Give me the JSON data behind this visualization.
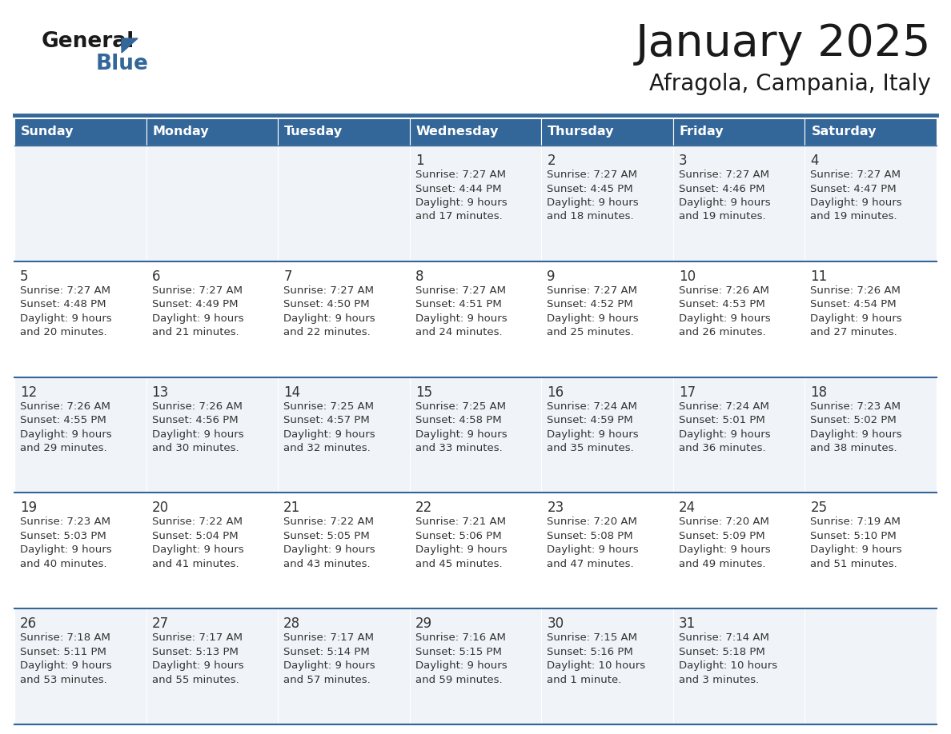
{
  "title": "January 2025",
  "subtitle": "Afragola, Campania, Italy",
  "header_bg": "#336699",
  "header_text": "#FFFFFF",
  "cell_bg_odd": "#F0F4F8",
  "cell_bg_even": "#FFFFFF",
  "separator_color": "#336699",
  "text_color": "#333333",
  "days_of_week": [
    "Sunday",
    "Monday",
    "Tuesday",
    "Wednesday",
    "Thursday",
    "Friday",
    "Saturday"
  ],
  "weeks": [
    [
      {
        "day": "",
        "lines": []
      },
      {
        "day": "",
        "lines": []
      },
      {
        "day": "",
        "lines": []
      },
      {
        "day": "1",
        "lines": [
          "Sunrise: 7:27 AM",
          "Sunset: 4:44 PM",
          "Daylight: 9 hours",
          "and 17 minutes."
        ]
      },
      {
        "day": "2",
        "lines": [
          "Sunrise: 7:27 AM",
          "Sunset: 4:45 PM",
          "Daylight: 9 hours",
          "and 18 minutes."
        ]
      },
      {
        "day": "3",
        "lines": [
          "Sunrise: 7:27 AM",
          "Sunset: 4:46 PM",
          "Daylight: 9 hours",
          "and 19 minutes."
        ]
      },
      {
        "day": "4",
        "lines": [
          "Sunrise: 7:27 AM",
          "Sunset: 4:47 PM",
          "Daylight: 9 hours",
          "and 19 minutes."
        ]
      }
    ],
    [
      {
        "day": "5",
        "lines": [
          "Sunrise: 7:27 AM",
          "Sunset: 4:48 PM",
          "Daylight: 9 hours",
          "and 20 minutes."
        ]
      },
      {
        "day": "6",
        "lines": [
          "Sunrise: 7:27 AM",
          "Sunset: 4:49 PM",
          "Daylight: 9 hours",
          "and 21 minutes."
        ]
      },
      {
        "day": "7",
        "lines": [
          "Sunrise: 7:27 AM",
          "Sunset: 4:50 PM",
          "Daylight: 9 hours",
          "and 22 minutes."
        ]
      },
      {
        "day": "8",
        "lines": [
          "Sunrise: 7:27 AM",
          "Sunset: 4:51 PM",
          "Daylight: 9 hours",
          "and 24 minutes."
        ]
      },
      {
        "day": "9",
        "lines": [
          "Sunrise: 7:27 AM",
          "Sunset: 4:52 PM",
          "Daylight: 9 hours",
          "and 25 minutes."
        ]
      },
      {
        "day": "10",
        "lines": [
          "Sunrise: 7:26 AM",
          "Sunset: 4:53 PM",
          "Daylight: 9 hours",
          "and 26 minutes."
        ]
      },
      {
        "day": "11",
        "lines": [
          "Sunrise: 7:26 AM",
          "Sunset: 4:54 PM",
          "Daylight: 9 hours",
          "and 27 minutes."
        ]
      }
    ],
    [
      {
        "day": "12",
        "lines": [
          "Sunrise: 7:26 AM",
          "Sunset: 4:55 PM",
          "Daylight: 9 hours",
          "and 29 minutes."
        ]
      },
      {
        "day": "13",
        "lines": [
          "Sunrise: 7:26 AM",
          "Sunset: 4:56 PM",
          "Daylight: 9 hours",
          "and 30 minutes."
        ]
      },
      {
        "day": "14",
        "lines": [
          "Sunrise: 7:25 AM",
          "Sunset: 4:57 PM",
          "Daylight: 9 hours",
          "and 32 minutes."
        ]
      },
      {
        "day": "15",
        "lines": [
          "Sunrise: 7:25 AM",
          "Sunset: 4:58 PM",
          "Daylight: 9 hours",
          "and 33 minutes."
        ]
      },
      {
        "day": "16",
        "lines": [
          "Sunrise: 7:24 AM",
          "Sunset: 4:59 PM",
          "Daylight: 9 hours",
          "and 35 minutes."
        ]
      },
      {
        "day": "17",
        "lines": [
          "Sunrise: 7:24 AM",
          "Sunset: 5:01 PM",
          "Daylight: 9 hours",
          "and 36 minutes."
        ]
      },
      {
        "day": "18",
        "lines": [
          "Sunrise: 7:23 AM",
          "Sunset: 5:02 PM",
          "Daylight: 9 hours",
          "and 38 minutes."
        ]
      }
    ],
    [
      {
        "day": "19",
        "lines": [
          "Sunrise: 7:23 AM",
          "Sunset: 5:03 PM",
          "Daylight: 9 hours",
          "and 40 minutes."
        ]
      },
      {
        "day": "20",
        "lines": [
          "Sunrise: 7:22 AM",
          "Sunset: 5:04 PM",
          "Daylight: 9 hours",
          "and 41 minutes."
        ]
      },
      {
        "day": "21",
        "lines": [
          "Sunrise: 7:22 AM",
          "Sunset: 5:05 PM",
          "Daylight: 9 hours",
          "and 43 minutes."
        ]
      },
      {
        "day": "22",
        "lines": [
          "Sunrise: 7:21 AM",
          "Sunset: 5:06 PM",
          "Daylight: 9 hours",
          "and 45 minutes."
        ]
      },
      {
        "day": "23",
        "lines": [
          "Sunrise: 7:20 AM",
          "Sunset: 5:08 PM",
          "Daylight: 9 hours",
          "and 47 minutes."
        ]
      },
      {
        "day": "24",
        "lines": [
          "Sunrise: 7:20 AM",
          "Sunset: 5:09 PM",
          "Daylight: 9 hours",
          "and 49 minutes."
        ]
      },
      {
        "day": "25",
        "lines": [
          "Sunrise: 7:19 AM",
          "Sunset: 5:10 PM",
          "Daylight: 9 hours",
          "and 51 minutes."
        ]
      }
    ],
    [
      {
        "day": "26",
        "lines": [
          "Sunrise: 7:18 AM",
          "Sunset: 5:11 PM",
          "Daylight: 9 hours",
          "and 53 minutes."
        ]
      },
      {
        "day": "27",
        "lines": [
          "Sunrise: 7:17 AM",
          "Sunset: 5:13 PM",
          "Daylight: 9 hours",
          "and 55 minutes."
        ]
      },
      {
        "day": "28",
        "lines": [
          "Sunrise: 7:17 AM",
          "Sunset: 5:14 PM",
          "Daylight: 9 hours",
          "and 57 minutes."
        ]
      },
      {
        "day": "29",
        "lines": [
          "Sunrise: 7:16 AM",
          "Sunset: 5:15 PM",
          "Daylight: 9 hours",
          "and 59 minutes."
        ]
      },
      {
        "day": "30",
        "lines": [
          "Sunrise: 7:15 AM",
          "Sunset: 5:16 PM",
          "Daylight: 10 hours",
          "and 1 minute."
        ]
      },
      {
        "day": "31",
        "lines": [
          "Sunrise: 7:14 AM",
          "Sunset: 5:18 PM",
          "Daylight: 10 hours",
          "and 3 minutes."
        ]
      },
      {
        "day": "",
        "lines": []
      }
    ]
  ]
}
